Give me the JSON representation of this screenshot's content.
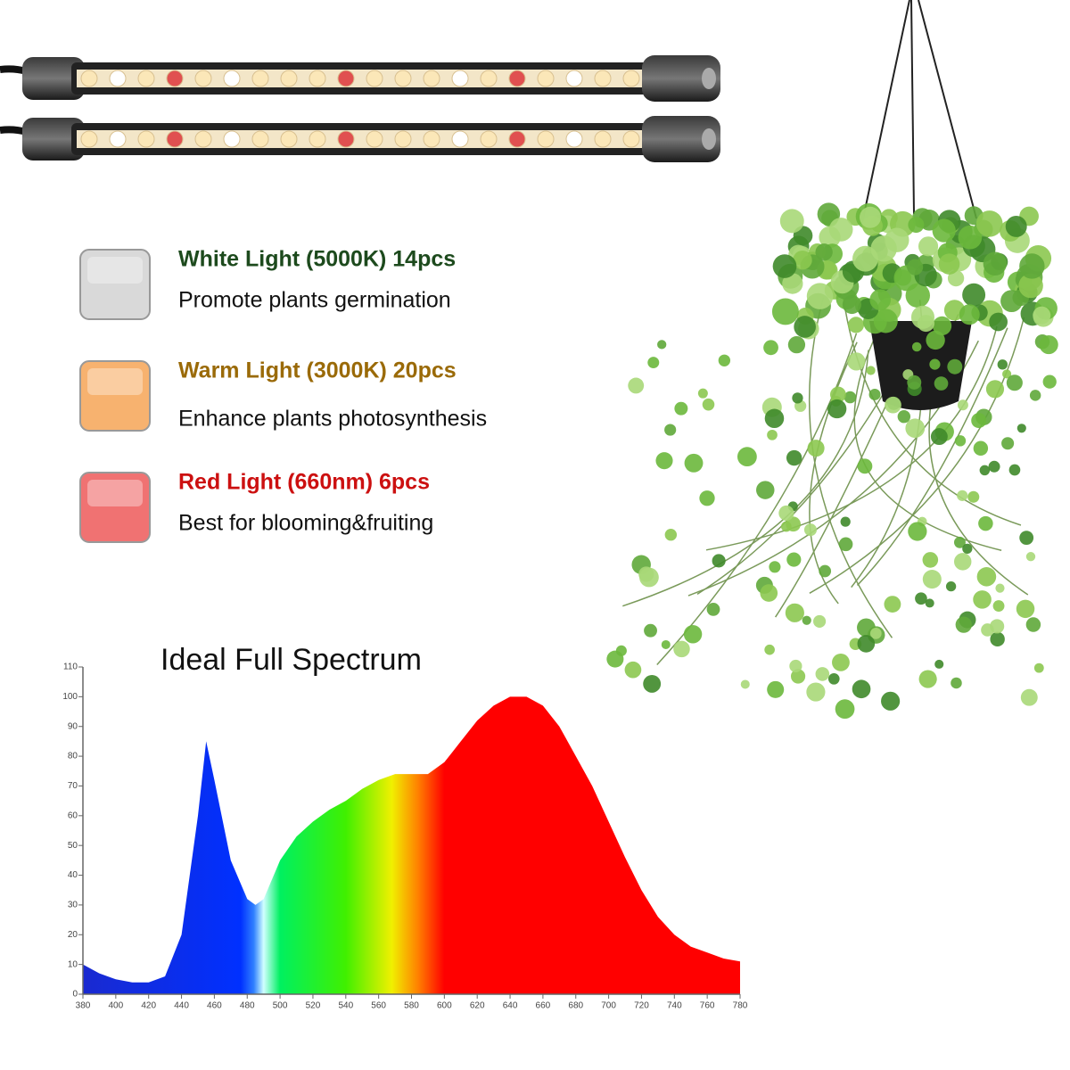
{
  "legend": [
    {
      "title": "White Light (5000K) 14pcs",
      "description": "Promote plants germination",
      "title_color": "#1d4a1d",
      "swatch_color": "#d9d9d9"
    },
    {
      "title": "Warm Light (3000K) 20pcs",
      "description": "Enhance plants photosynthesis",
      "title_color": "#9a6a08",
      "swatch_color": "#f7b26f"
    },
    {
      "title": "Red Light (660nm) 6pcs",
      "description": "Best for blooming&fruiting",
      "title_color": "#cc1010",
      "swatch_color": "#f07272"
    }
  ],
  "chart_data": {
    "type": "area",
    "title": "Ideal Full Spectrum",
    "x": [
      380,
      390,
      400,
      410,
      420,
      430,
      440,
      450,
      455,
      460,
      470,
      480,
      485,
      490,
      500,
      510,
      520,
      530,
      540,
      550,
      560,
      570,
      580,
      590,
      600,
      610,
      620,
      630,
      640,
      650,
      660,
      670,
      680,
      690,
      700,
      710,
      720,
      730,
      740,
      750,
      760,
      770,
      780
    ],
    "values": [
      10,
      7,
      5,
      4,
      4,
      6,
      20,
      60,
      85,
      72,
      45,
      32,
      30,
      32,
      45,
      53,
      58,
      62,
      65,
      69,
      72,
      74,
      74,
      74,
      78,
      85,
      92,
      97,
      100,
      100,
      97,
      90,
      80,
      70,
      58,
      46,
      35,
      26,
      20,
      16,
      14,
      12,
      11
    ],
    "xlim": [
      380,
      780
    ],
    "xticks": [
      380,
      400,
      420,
      440,
      460,
      480,
      500,
      520,
      540,
      560,
      580,
      600,
      620,
      640,
      660,
      680,
      700,
      720,
      740,
      760,
      780
    ],
    "ylim": [
      0,
      110
    ],
    "yticks": [
      0,
      10,
      20,
      30,
      40,
      50,
      60,
      70,
      80,
      90,
      100,
      110
    ]
  }
}
